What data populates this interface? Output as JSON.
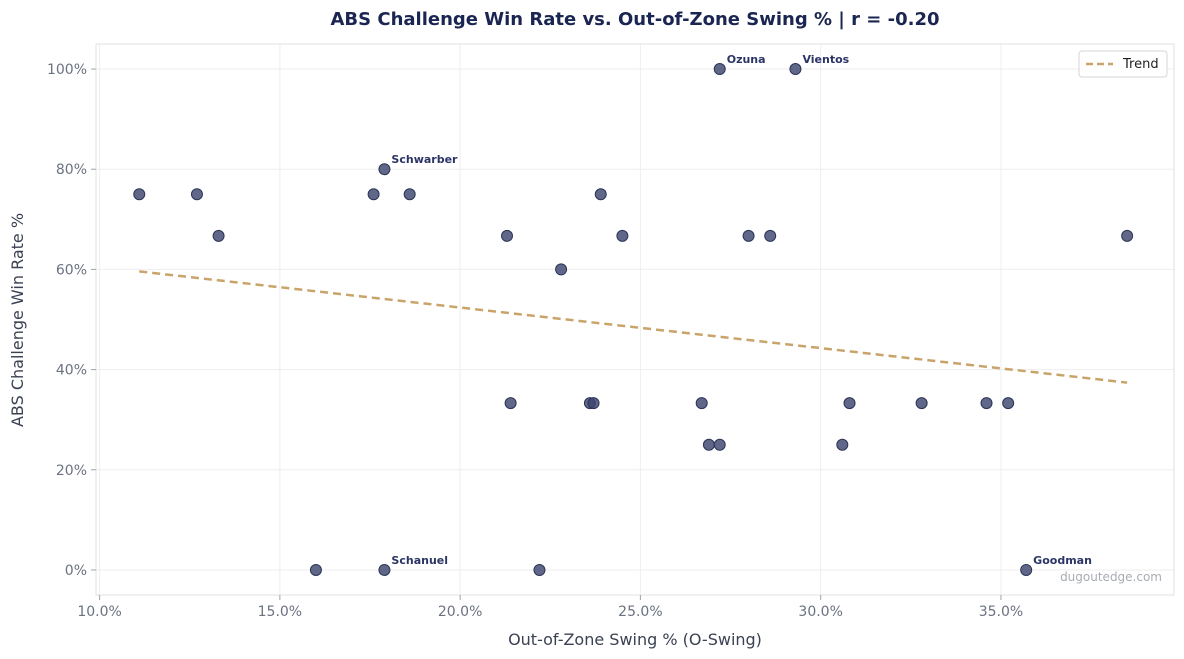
{
  "chart_data": {
    "type": "scatter",
    "title": "ABS Challenge Win Rate vs. Out-of-Zone Swing % | r = -0.20",
    "xlabel": "Out-of-Zone Swing % (O-Swing)",
    "ylabel": "ABS Challenge Win Rate %",
    "xlim": [
      9.9,
      39.8
    ],
    "ylim": [
      -5,
      105
    ],
    "x_ticks": [
      10,
      15,
      20,
      25,
      30,
      35
    ],
    "x_tick_labels": [
      "10.0%",
      "15.0%",
      "20.0%",
      "25.0%",
      "30.0%",
      "35.0%"
    ],
    "y_ticks": [
      0,
      20,
      40,
      60,
      80,
      100
    ],
    "y_tick_labels": [
      "0%",
      "20%",
      "40%",
      "60%",
      "80%",
      "100%"
    ],
    "grid": true,
    "legend_position": "top-right",
    "points": [
      {
        "x": 11.1,
        "y": 75
      },
      {
        "x": 12.7,
        "y": 75
      },
      {
        "x": 13.3,
        "y": 66.7
      },
      {
        "x": 16.0,
        "y": 0
      },
      {
        "x": 17.6,
        "y": 75
      },
      {
        "x": 17.9,
        "y": 80,
        "label": "Schwarber"
      },
      {
        "x": 17.9,
        "y": 0,
        "label": "Schanuel"
      },
      {
        "x": 18.6,
        "y": 75
      },
      {
        "x": 21.3,
        "y": 66.7
      },
      {
        "x": 21.4,
        "y": 33.3
      },
      {
        "x": 22.2,
        "y": 0
      },
      {
        "x": 22.8,
        "y": 60
      },
      {
        "x": 23.6,
        "y": 33.3
      },
      {
        "x": 23.7,
        "y": 33.3
      },
      {
        "x": 23.9,
        "y": 75
      },
      {
        "x": 24.5,
        "y": 66.7
      },
      {
        "x": 26.7,
        "y": 33.3
      },
      {
        "x": 26.9,
        "y": 25
      },
      {
        "x": 27.2,
        "y": 25
      },
      {
        "x": 27.2,
        "y": 100,
        "label": "Ozuna"
      },
      {
        "x": 28.0,
        "y": 66.7
      },
      {
        "x": 28.6,
        "y": 66.7
      },
      {
        "x": 29.3,
        "y": 100,
        "label": "Vientos"
      },
      {
        "x": 30.6,
        "y": 25
      },
      {
        "x": 30.8,
        "y": 33.3
      },
      {
        "x": 32.8,
        "y": 33.3
      },
      {
        "x": 34.6,
        "y": 33.3
      },
      {
        "x": 35.2,
        "y": 33.3
      },
      {
        "x": 35.7,
        "y": 0,
        "label": "Goodman"
      },
      {
        "x": 38.5,
        "y": 66.7
      }
    ],
    "trend": {
      "name": "Trend",
      "x": [
        11.1,
        38.5
      ],
      "y": [
        59.6,
        37.4
      ]
    },
    "colors": {
      "point": "#3d466e",
      "point_edge": "#2b3456",
      "trend": "#c9a46a",
      "grid": "#eeeeee"
    }
  },
  "watermark": "dugoutedge.com"
}
